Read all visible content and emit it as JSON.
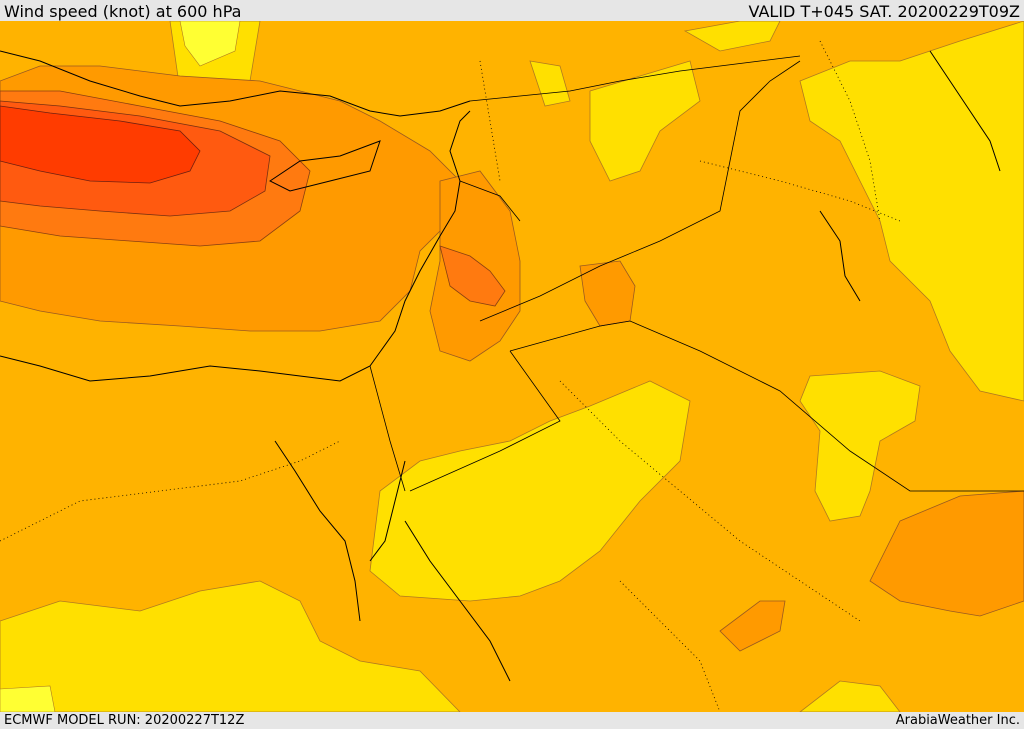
{
  "header": {
    "title": "Wind speed (knot) at 600 hPa",
    "valid": "VALID T+045 SAT. 20200229T09Z"
  },
  "footer": {
    "model_run": "ECMWF MODEL RUN: 20200227T12Z",
    "credit": "ArabiaWeather Inc."
  },
  "map": {
    "field": "wind speed",
    "level": "600 hPa",
    "units": "knot",
    "palette": {
      "lightest": "#ffff33",
      "light": "#ffe000",
      "mid": "#ffb300",
      "orange": "#ff9a00",
      "dark_orange": "#ff7a10",
      "red_orange": "#ff5a10",
      "core": "#ff3c00"
    },
    "region": "Eastern Mediterranean / Middle East",
    "features": [
      "contour-fills",
      "coastlines",
      "country-borders",
      "dotted-admin-borders"
    ]
  }
}
